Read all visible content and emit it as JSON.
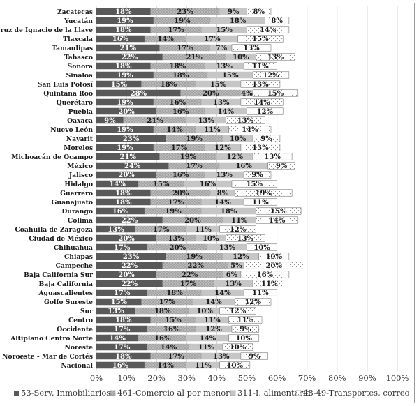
{
  "chart_data": {
    "type": "bar",
    "orientation": "horizontal",
    "stacked": true,
    "title": "",
    "xlabel": "",
    "ylabel": "",
    "xlim": [
      0,
      100
    ],
    "x_tick_labels": [
      "0%",
      "10%",
      "20%",
      "30%",
      "40%",
      "50%",
      "60%",
      "70%",
      "80%",
      "90%",
      "100%"
    ],
    "grid": true,
    "legend_position": "bottom",
    "value_suffix": "%",
    "categories": [
      "Zacatecas",
      "Yucatán",
      "Veracruz de Ignacio de la Llave",
      "Tlaxcala",
      "Tamaulipas",
      "Tabasco",
      "Sonora",
      "Sinaloa",
      "San Luis Potosí",
      "Quintana Roo",
      "Querétaro",
      "Puebla",
      "Oaxaca",
      "Nuevo León",
      "Nayarit",
      "Morelos",
      "Michoacán de Ocampo",
      "México",
      "Jalisco",
      "Hidalgo",
      "Guerrero",
      "Guanajuato",
      "Durango",
      "Colima",
      "Coahuila de Zaragoza",
      "Ciudad de México",
      "Chihuahua",
      "Chiapas",
      "Campeche",
      "Baja California Sur",
      "Baja California",
      "Aguascalientes",
      "Golfo Sureste",
      "Sur",
      "Centro",
      "Occidente",
      "Altiplano Centro Norte",
      "Noreste",
      "Noroeste - Mar de Cortés",
      "Nacional"
    ],
    "series": [
      {
        "name": "53-Serv. Inmobiliarios",
        "color": "#5a5a5a",
        "pattern": "solid-dark",
        "values": [
          18,
          19,
          18,
          16,
          21,
          22,
          18,
          19,
          15,
          28,
          19,
          20,
          9,
          19,
          23,
          19,
          21,
          24,
          20,
          14,
          18,
          18,
          16,
          22,
          13,
          20,
          17,
          23,
          22,
          20,
          22,
          17,
          15,
          13,
          18,
          17,
          14,
          17,
          18,
          16
        ]
      },
      {
        "name": "461-Comercio al por menor",
        "color": "#a8a8a8",
        "pattern": "dotted",
        "values": [
          23,
          19,
          17,
          14,
          17,
          21,
          18,
          18,
          18,
          20,
          16,
          16,
          21,
          14,
          19,
          17,
          19,
          17,
          16,
          15,
          20,
          17,
          19,
          20,
          17,
          13,
          20,
          19,
          22,
          22,
          17,
          18,
          17,
          18,
          15,
          16,
          16,
          14,
          17,
          14
        ]
      },
      {
        "name": "311-I. alimentaria",
        "color": "#c8c8c8",
        "pattern": "solid-light",
        "values": [
          9,
          18,
          15,
          17,
          7,
          10,
          13,
          15,
          15,
          4,
          13,
          14,
          13,
          11,
          10,
          12,
          12,
          16,
          13,
          16,
          8,
          14,
          18,
          11,
          11,
          10,
          13,
          12,
          5,
          6,
          13,
          14,
          14,
          10,
          11,
          12,
          14,
          11,
          13,
          11
        ]
      },
      {
        "name": "48-49-Transportes, correo",
        "color": "#ffffff",
        "pattern": "sparse-dots",
        "values": [
          8,
          8,
          14,
          15,
          13,
          13,
          11,
          12,
          13,
          15,
          14,
          12,
          13,
          14,
          9,
          13,
          13,
          9,
          9,
          15,
          19,
          11,
          15,
          14,
          12,
          13,
          10,
          10,
          20,
          16,
          11,
          11,
          12,
          12,
          11,
          9,
          10,
          10,
          9,
          10
        ]
      }
    ]
  }
}
